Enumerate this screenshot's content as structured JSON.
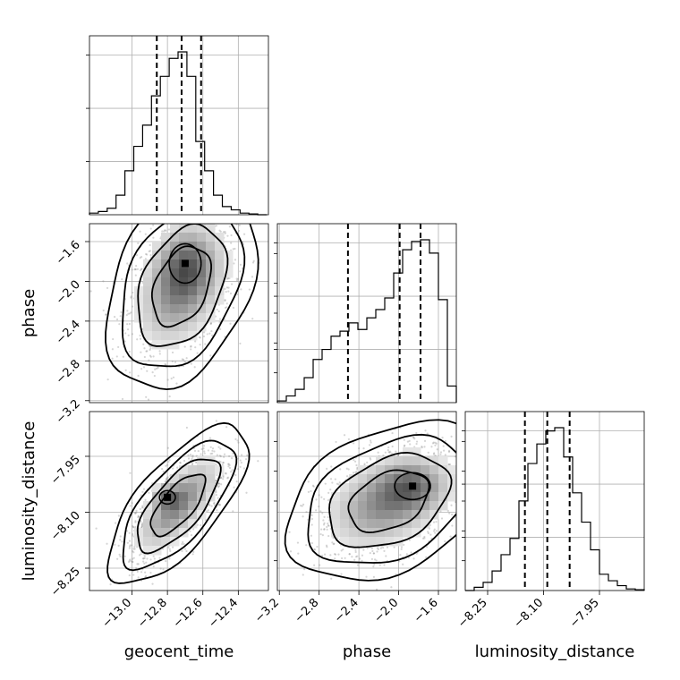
{
  "chart_data": {
    "type": "corner",
    "parameters": [
      "geocent_time",
      "phase",
      "luminosity_distance"
    ],
    "grid": true,
    "axes": {
      "geocent_time": {
        "label": "geocent_time",
        "range": [
          -13.24,
          -12.23
        ],
        "ticks": [
          -13.0,
          -12.8,
          -12.6,
          -12.4
        ],
        "tick_labels": [
          "−13.0",
          "−12.8",
          "−12.6",
          "−12.4"
        ]
      },
      "phase": {
        "label": "phase",
        "range": [
          -3.22,
          -1.42
        ],
        "ticks": [
          -3.2,
          -2.8,
          -2.4,
          -2.0,
          -1.6
        ],
        "tick_labels": [
          "−3.2",
          "−2.8",
          "−2.4",
          "−2.0",
          "−1.6"
        ]
      },
      "luminosity_distance": {
        "label": "luminosity_distance",
        "range": [
          -8.31,
          -7.83
        ],
        "ticks": [
          -8.25,
          -8.1,
          -7.95
        ],
        "tick_labels": [
          "−8.25",
          "−8.10",
          "−7.95"
        ]
      }
    },
    "histograms": [
      {
        "param": "geocent_time",
        "bin_edges": [
          -13.24,
          -13.19,
          -13.14,
          -13.09,
          -13.04,
          -12.99,
          -12.94,
          -12.89,
          -12.84,
          -12.79,
          -12.74,
          -12.69,
          -12.64,
          -12.59,
          -12.54,
          -12.49,
          -12.44,
          -12.39,
          -12.34,
          -12.29,
          -12.24
        ],
        "counts": [
          0.01,
          0.02,
          0.04,
          0.12,
          0.27,
          0.42,
          0.55,
          0.73,
          0.85,
          0.96,
          1.0,
          0.85,
          0.45,
          0.27,
          0.12,
          0.05,
          0.03,
          0.01,
          0.005,
          0.0
        ],
        "quantiles": [
          -12.86,
          -12.72,
          -12.61
        ]
      },
      {
        "param": "phase",
        "bin_edges": [
          -3.22,
          -3.13,
          -3.04,
          -2.95,
          -2.86,
          -2.77,
          -2.68,
          -2.59,
          -2.5,
          -2.41,
          -2.32,
          -2.23,
          -2.14,
          -2.05,
          -1.96,
          -1.87,
          -1.78,
          -1.69,
          -1.6,
          -1.51,
          -1.42
        ],
        "counts": [
          0.01,
          0.04,
          0.08,
          0.15,
          0.26,
          0.32,
          0.4,
          0.43,
          0.48,
          0.44,
          0.51,
          0.56,
          0.63,
          0.78,
          0.92,
          0.97,
          0.98,
          0.9,
          0.62,
          0.1
        ],
        "quantiles": [
          -2.51,
          -1.99,
          -1.78
        ]
      },
      {
        "param": "luminosity_distance",
        "bin_edges": [
          -8.31,
          -8.286,
          -8.262,
          -8.238,
          -8.214,
          -8.19,
          -8.166,
          -8.142,
          -8.118,
          -8.094,
          -8.07,
          -8.046,
          -8.022,
          -7.998,
          -7.974,
          -7.95,
          -7.926,
          -7.902,
          -7.878,
          -7.854,
          -7.83
        ],
        "counts": [
          0.0,
          0.02,
          0.05,
          0.12,
          0.22,
          0.32,
          0.55,
          0.78,
          0.9,
          0.98,
          1.0,
          0.82,
          0.6,
          0.42,
          0.25,
          0.1,
          0.06,
          0.03,
          0.01,
          0.005
        ],
        "quantiles": [
          -8.15,
          -8.09,
          -8.03
        ]
      }
    ],
    "pairs": [
      {
        "x": "geocent_time",
        "y": "phase",
        "mean": [
          -12.72,
          -2.05
        ],
        "sd": [
          0.14,
          0.34
        ],
        "rho": 0.35,
        "peak": [
          -12.7,
          -1.82
        ],
        "peak_sd": [
          0.1,
          0.22
        ],
        "contour_levels": [
          0.5,
          0.8,
          0.95,
          0.99
        ]
      },
      {
        "x": "geocent_time",
        "y": "luminosity_distance",
        "mean": [
          -12.74,
          -8.08
        ],
        "sd": [
          0.13,
          0.07
        ],
        "rho": 0.7,
        "peak": [
          -12.8,
          -8.06
        ],
        "peak_sd": [
          0.05,
          0.02
        ],
        "contour_levels": [
          0.5,
          0.8,
          0.95,
          0.99
        ]
      },
      {
        "x": "phase",
        "y": "luminosity_distance",
        "mean": [
          -2.1,
          -8.07
        ],
        "sd": [
          0.34,
          0.07
        ],
        "rho": 0.35,
        "peak": [
          -1.86,
          -8.03
        ],
        "peak_sd": [
          0.2,
          0.04
        ],
        "contour_levels": [
          0.5,
          0.8,
          0.95,
          0.99
        ]
      }
    ]
  }
}
